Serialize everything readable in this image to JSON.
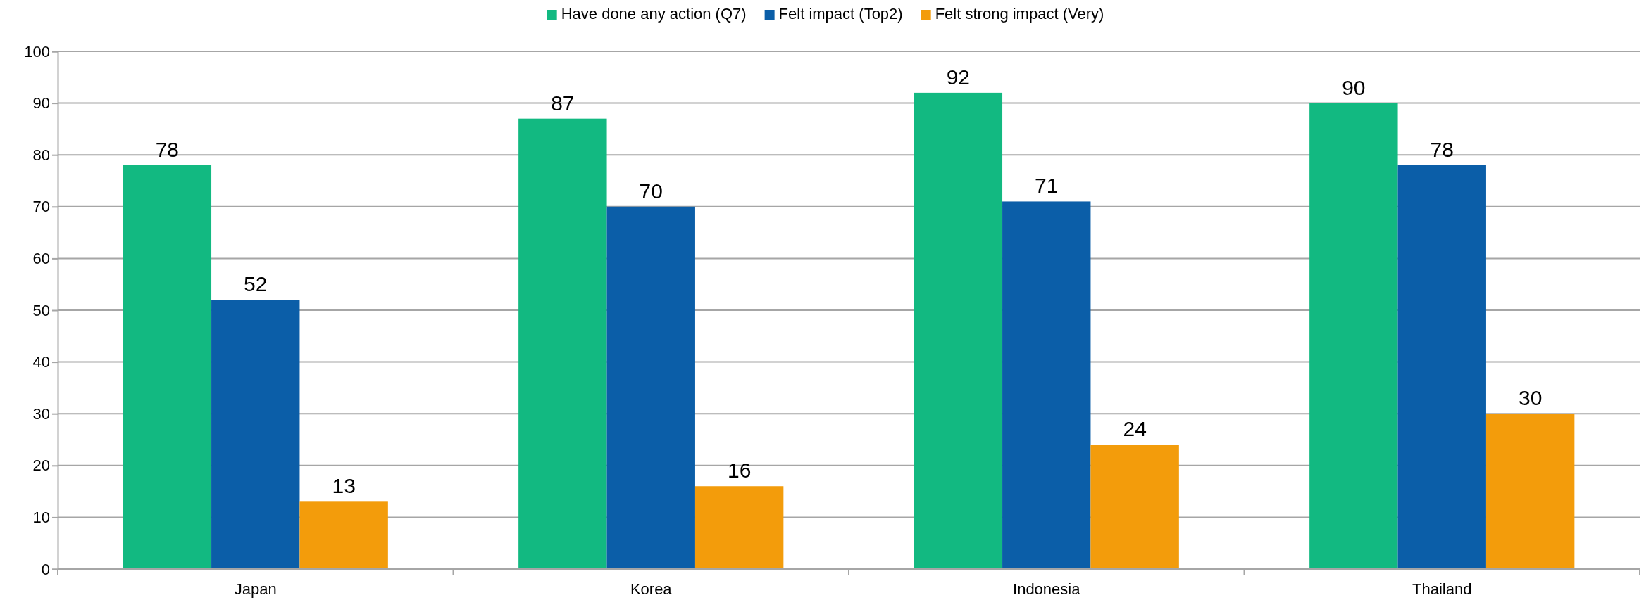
{
  "chart_data": {
    "type": "bar",
    "categories": [
      "Japan",
      "Korea",
      "Indonesia",
      "Thailand"
    ],
    "series": [
      {
        "name": "Have done any action (Q7)",
        "color": "#12b981",
        "values": [
          78,
          87,
          92,
          90
        ]
      },
      {
        "name": "Felt impact (Top2)",
        "color": "#0b5ea8",
        "values": [
          52,
          70,
          71,
          78
        ]
      },
      {
        "name": "Felt strong impact (Very)",
        "color": "#f39c0b",
        "values": [
          13,
          16,
          24,
          30
        ]
      }
    ],
    "ylim": [
      0,
      100
    ],
    "yticks": [
      0,
      10,
      20,
      30,
      40,
      50,
      60,
      70,
      80,
      90,
      100
    ],
    "grid": "y",
    "legend": "top",
    "data_labels": true
  }
}
